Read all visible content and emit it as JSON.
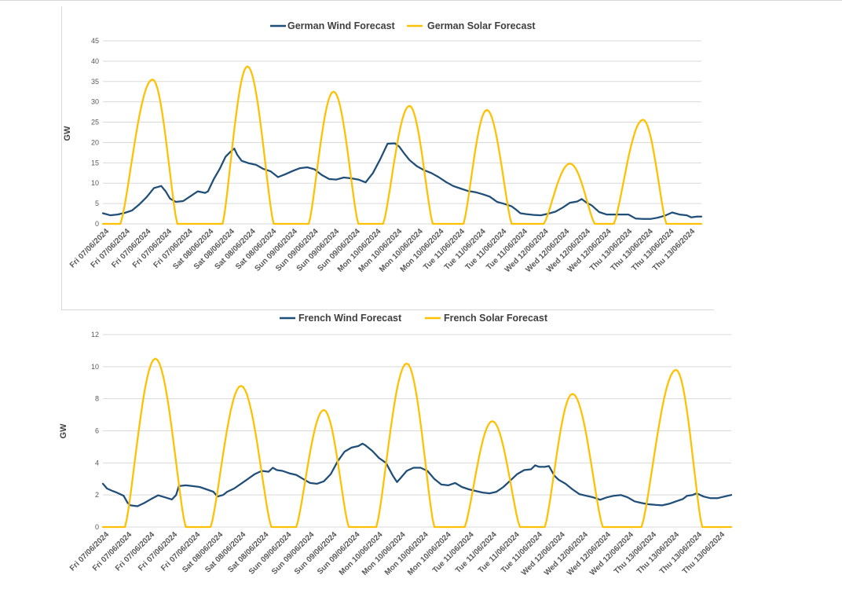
{
  "chart_data": [
    {
      "type": "line",
      "title": "",
      "xlabel": "",
      "ylabel": "GW",
      "ylim": [
        0,
        45
      ],
      "yticks": [
        0,
        5,
        10,
        15,
        20,
        25,
        30,
        35,
        40,
        45
      ],
      "grid": true,
      "legend": "top",
      "x_tick_labels": [
        "Fri 07/06/2024",
        "Fri 07/06/2024",
        "Fri 07/06/2024",
        "Fri 07/06/2024",
        "Fri 07/06/2024",
        "Sat 08/06/2024",
        "Sat 08/06/2024",
        "Sat 08/06/2024",
        "Sat 08/06/2024",
        "Sun 09/06/2024",
        "Sun 09/06/2024",
        "Sun 09/06/2024",
        "Sun 09/06/2024",
        "Mon 10/06/2024",
        "Mon 10/06/2024",
        "Mon 10/06/2024",
        "Mon 10/06/2024",
        "Tue 11/06/2024",
        "Tue 11/06/2024",
        "Tue 11/06/2024",
        "Tue 11/06/2024",
        "Wed 12/06/2024",
        "Wed 12/06/2024",
        "Wed 12/06/2024",
        "Wed 12/06/2024",
        "Thu 13/06/2024",
        "Thu 13/06/2024",
        "Thu 13/06/2024",
        "Thu 13/06/2024"
      ],
      "series": [
        {
          "name": "German Wind Forecast",
          "color": "#1f4e79",
          "points": [
            [
              0,
              2.6
            ],
            [
              0.5,
              2.1
            ],
            [
              1,
              2.3
            ],
            [
              1.5,
              2.7
            ],
            [
              2,
              3.3
            ],
            [
              2.5,
              4.8
            ],
            [
              3,
              6.6
            ],
            [
              3.5,
              8.8
            ],
            [
              4,
              9.3
            ],
            [
              4.3,
              8.0
            ],
            [
              4.6,
              6.2
            ],
            [
              5,
              5.4
            ],
            [
              5.5,
              5.6
            ],
            [
              6,
              6.8
            ],
            [
              6.5,
              8.0
            ],
            [
              7,
              7.6
            ],
            [
              7.2,
              8.0
            ],
            [
              7.6,
              11.0
            ],
            [
              8,
              13.5
            ],
            [
              8.4,
              16.5
            ],
            [
              8.7,
              17.6
            ],
            [
              9,
              18.5
            ],
            [
              9.2,
              17.0
            ],
            [
              9.5,
              15.5
            ],
            [
              10,
              14.9
            ],
            [
              10.5,
              14.5
            ],
            [
              11,
              13.5
            ],
            [
              11.5,
              12.9
            ],
            [
              12,
              11.5
            ],
            [
              12.5,
              12.2
            ],
            [
              13,
              13.0
            ],
            [
              13.5,
              13.7
            ],
            [
              14,
              13.9
            ],
            [
              14.5,
              13.4
            ],
            [
              15,
              12.0
            ],
            [
              15.5,
              11.0
            ],
            [
              16,
              10.9
            ],
            [
              16.5,
              11.4
            ],
            [
              17,
              11.2
            ],
            [
              17.5,
              10.9
            ],
            [
              18,
              10.2
            ],
            [
              18.5,
              12.5
            ],
            [
              19,
              15.9
            ],
            [
              19.5,
              19.7
            ],
            [
              20,
              19.8
            ],
            [
              20.3,
              19.0
            ],
            [
              20.6,
              17.5
            ],
            [
              21,
              15.7
            ],
            [
              21.5,
              14.2
            ],
            [
              22,
              13.2
            ],
            [
              22.5,
              12.5
            ],
            [
              23,
              11.5
            ],
            [
              23.5,
              10.3
            ],
            [
              24,
              9.3
            ],
            [
              24.5,
              8.7
            ],
            [
              25,
              8.1
            ],
            [
              25.5,
              7.8
            ],
            [
              26,
              7.3
            ],
            [
              26.5,
              6.7
            ],
            [
              27,
              5.4
            ],
            [
              27.5,
              4.9
            ],
            [
              28,
              4.3
            ],
            [
              28.3,
              3.5
            ],
            [
              28.6,
              2.6
            ],
            [
              29,
              2.4
            ],
            [
              29.5,
              2.2
            ],
            [
              30,
              2.1
            ],
            [
              30.5,
              2.5
            ],
            [
              31,
              3.0
            ],
            [
              31.5,
              4.0
            ],
            [
              32,
              5.2
            ],
            [
              32.5,
              5.5
            ],
            [
              32.8,
              6.1
            ],
            [
              33.1,
              5.3
            ],
            [
              33.5,
              4.5
            ],
            [
              34,
              2.9
            ],
            [
              34.5,
              2.3
            ],
            [
              35,
              2.3
            ],
            [
              35.5,
              2.3
            ],
            [
              36,
              2.3
            ],
            [
              36.5,
              1.3
            ],
            [
              37,
              1.2
            ],
            [
              37.5,
              1.2
            ],
            [
              38,
              1.5
            ],
            [
              38.5,
              2.0
            ],
            [
              39,
              2.8
            ],
            [
              39.5,
              2.3
            ],
            [
              40,
              2.1
            ],
            [
              40.3,
              1.6
            ],
            [
              40.7,
              1.8
            ],
            [
              41,
              1.8
            ]
          ]
        },
        {
          "name": "German Solar Forecast",
          "color": "#ffc000",
          "peaks": [
            {
              "start": 1.2,
              "peak_x": 3.4,
              "end": 5.1,
              "peak": 35.5
            },
            {
              "start": 8.2,
              "peak_x": 9.9,
              "end": 11.7,
              "peak": 38.7
            },
            {
              "start": 14.1,
              "peak_x": 15.8,
              "end": 17.5,
              "peak": 32.5
            },
            {
              "start": 19.2,
              "peak_x": 21.0,
              "end": 22.6,
              "peak": 29.0
            },
            {
              "start": 24.7,
              "peak_x": 26.3,
              "end": 28.0,
              "peak": 28.0
            },
            {
              "start": 30.2,
              "peak_x": 32.0,
              "end": 33.7,
              "peak": 14.8
            },
            {
              "start": 35.0,
              "peak_x": 37.0,
              "end": 38.6,
              "peak": 25.6
            }
          ]
        }
      ]
    },
    {
      "type": "line",
      "title": "",
      "xlabel": "",
      "ylabel": "GW",
      "ylim": [
        0,
        12
      ],
      "yticks": [
        0,
        2,
        4,
        6,
        8,
        10,
        12
      ],
      "grid": true,
      "legend": "top",
      "x_tick_labels": [
        "Fri 07/06/2024",
        "Fri 07/06/2024",
        "Fri 07/06/2024",
        "Fri 07/06/2024",
        "Fri 07/06/2024",
        "Sat 08/06/2024",
        "Sat 08/06/2024",
        "Sat 08/06/2024",
        "Sun 09/06/2024",
        "Sun 09/06/2024",
        "Sun 09/06/2024",
        "Sun 09/06/2024",
        "Mon 10/06/2024",
        "Mon 10/06/2024",
        "Mon 10/06/2024",
        "Mon 10/06/2024",
        "Tue 11/06/2024",
        "Tue 11/06/2024",
        "Tue 11/06/2024",
        "Tue 11/06/2024",
        "Wed 12/06/2024",
        "Wed 12/06/2024",
        "Wed 12/06/2024",
        "Wed 12/06/2024",
        "Thu 13/06/2024",
        "Thu 13/06/2024",
        "Thu 13/06/2024",
        "Thu 13/06/2024"
      ],
      "series": [
        {
          "name": "French Wind Forecast",
          "color": "#1f4e79",
          "points": [
            [
              0,
              2.7
            ],
            [
              0.3,
              2.4
            ],
            [
              0.7,
              2.25
            ],
            [
              1,
              2.15
            ],
            [
              1.5,
              1.95
            ],
            [
              1.8,
              1.5
            ],
            [
              2,
              1.35
            ],
            [
              2.5,
              1.3
            ],
            [
              3,
              1.5
            ],
            [
              3.5,
              1.75
            ],
            [
              4,
              1.98
            ],
            [
              4.5,
              1.85
            ],
            [
              5,
              1.72
            ],
            [
              5.3,
              2.0
            ],
            [
              5.5,
              2.55
            ],
            [
              6,
              2.6
            ],
            [
              6.5,
              2.55
            ],
            [
              7,
              2.5
            ],
            [
              7.5,
              2.35
            ],
            [
              8,
              2.2
            ],
            [
              8.3,
              1.9
            ],
            [
              8.7,
              2.0
            ],
            [
              9,
              2.2
            ],
            [
              9.5,
              2.4
            ],
            [
              10,
              2.7
            ],
            [
              10.5,
              3.0
            ],
            [
              11,
              3.3
            ],
            [
              11.5,
              3.5
            ],
            [
              12,
              3.45
            ],
            [
              12.3,
              3.7
            ],
            [
              12.6,
              3.55
            ],
            [
              13,
              3.5
            ],
            [
              13.5,
              3.35
            ],
            [
              14,
              3.25
            ],
            [
              14.5,
              3.0
            ],
            [
              15,
              2.75
            ],
            [
              15.5,
              2.7
            ],
            [
              16,
              2.85
            ],
            [
              16.5,
              3.3
            ],
            [
              17,
              4.1
            ],
            [
              17.5,
              4.7
            ],
            [
              18,
              4.95
            ],
            [
              18.5,
              5.05
            ],
            [
              18.8,
              5.2
            ],
            [
              19,
              5.1
            ],
            [
              19.5,
              4.75
            ],
            [
              20,
              4.3
            ],
            [
              20.5,
              4.0
            ],
            [
              21,
              3.2
            ],
            [
              21.3,
              2.8
            ],
            [
              21.6,
              3.1
            ],
            [
              22,
              3.5
            ],
            [
              22.5,
              3.7
            ],
            [
              23,
              3.7
            ],
            [
              23.5,
              3.5
            ],
            [
              24,
              3.0
            ],
            [
              24.5,
              2.65
            ],
            [
              25,
              2.6
            ],
            [
              25.5,
              2.75
            ],
            [
              26,
              2.5
            ],
            [
              26.5,
              2.35
            ],
            [
              27,
              2.25
            ],
            [
              27.5,
              2.15
            ],
            [
              28,
              2.1
            ],
            [
              28.5,
              2.2
            ],
            [
              29,
              2.5
            ],
            [
              29.5,
              2.9
            ],
            [
              30,
              3.3
            ],
            [
              30.5,
              3.55
            ],
            [
              31,
              3.6
            ],
            [
              31.3,
              3.85
            ],
            [
              31.6,
              3.75
            ],
            [
              32,
              3.75
            ],
            [
              32.3,
              3.8
            ],
            [
              32.7,
              3.2
            ],
            [
              33,
              2.95
            ],
            [
              33.5,
              2.7
            ],
            [
              34,
              2.35
            ],
            [
              34.5,
              2.05
            ],
            [
              35,
              1.95
            ],
            [
              35.5,
              1.85
            ],
            [
              36,
              1.7
            ],
            [
              36.5,
              1.85
            ],
            [
              37,
              1.95
            ],
            [
              37.5,
              2.0
            ],
            [
              38,
              1.85
            ],
            [
              38.5,
              1.6
            ],
            [
              39,
              1.5
            ],
            [
              39.5,
              1.42
            ],
            [
              40,
              1.38
            ],
            [
              40.5,
              1.35
            ],
            [
              41,
              1.45
            ],
            [
              41.5,
              1.6
            ],
            [
              42,
              1.75
            ],
            [
              42.3,
              1.95
            ],
            [
              42.7,
              2.0
            ],
            [
              43,
              2.1
            ],
            [
              43.5,
              1.9
            ],
            [
              44,
              1.8
            ],
            [
              44.5,
              1.8
            ],
            [
              45,
              1.9
            ],
            [
              45.5,
              2.0
            ]
          ]
        },
        {
          "name": "French Solar Forecast",
          "color": "#ffc000",
          "peaks": [
            {
              "start": 1.6,
              "peak_x": 3.8,
              "end": 6.0,
              "peak": 10.5
            },
            {
              "start": 7.8,
              "peak_x": 10.0,
              "end": 12.2,
              "peak": 8.8
            },
            {
              "start": 14.0,
              "peak_x": 16.0,
              "end": 17.8,
              "peak": 7.3
            },
            {
              "start": 19.8,
              "peak_x": 22.0,
              "end": 24.0,
              "peak": 10.2
            },
            {
              "start": 26.2,
              "peak_x": 28.2,
              "end": 30.2,
              "peak": 6.6
            },
            {
              "start": 32.0,
              "peak_x": 34.0,
              "end": 36.2,
              "peak": 8.3
            },
            {
              "start": 39.0,
              "peak_x": 41.5,
              "end": 43.4,
              "peak": 9.8
            }
          ]
        }
      ]
    }
  ]
}
